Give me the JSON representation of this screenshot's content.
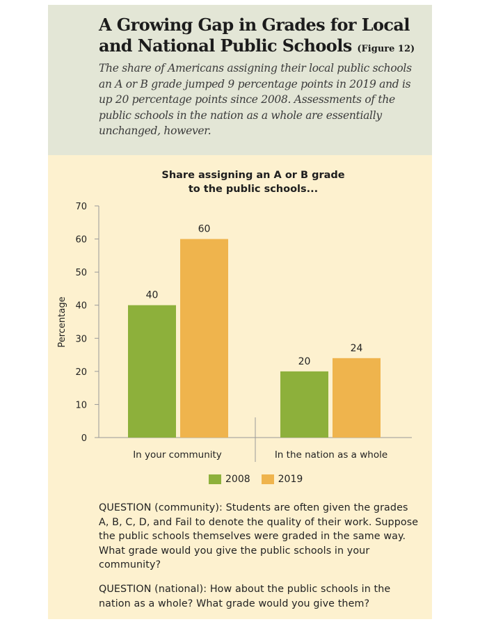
{
  "header": {
    "title": "A Growing Gap in Grades for Local and National Public Schools",
    "figure_label": "(Figure 12)",
    "subtitle": "The share of Americans assigning their local public schools an A or B grade jumped 9 percentage points in 2019 and is up 20 percentage points since 2008. Assessments of the public schools in the nation as a whole are essentially unchanged, however."
  },
  "chart_data": {
    "type": "bar",
    "title": "Share assigning an A or B grade to the public schools...",
    "title_lines": [
      "Share assigning an A or B grade",
      "to the public schools..."
    ],
    "ylabel": "Percentage",
    "xlabel": "",
    "ylim": [
      0,
      70
    ],
    "yticks": [
      0,
      10,
      20,
      30,
      40,
      50,
      60,
      70
    ],
    "categories": [
      "In your community",
      "In the nation as a whole"
    ],
    "series": [
      {
        "name": "2008",
        "values": [
          40,
          20
        ],
        "color": "#8db03b"
      },
      {
        "name": "2019",
        "values": [
          60,
          24
        ],
        "color": "#efb44d"
      }
    ],
    "data_labels": true,
    "legend_position": "bottom",
    "grid": false
  },
  "questions": [
    "QUESTION (community): Students are often given the grades A, B, C, D, and Fail to denote the quality of their work. Suppose the public schools themselves were graded in the same way. What grade would you give the public schools in your community?",
    "QUESTION (national): How about the public schools in the nation as a whole?  What grade would you give them?"
  ],
  "colors": {
    "header_bg": "#e3e6d6",
    "card_bg": "#fdf1cf"
  }
}
